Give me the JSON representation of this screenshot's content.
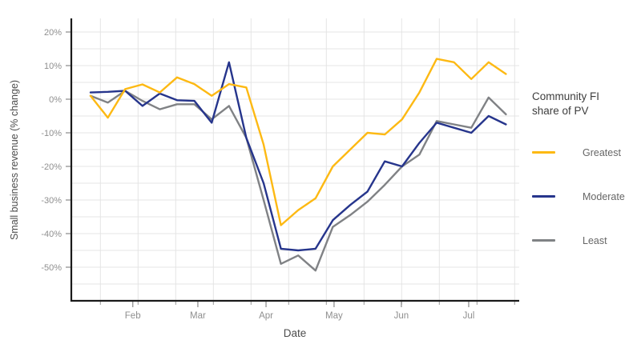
{
  "chart_data": {
    "type": "line",
    "title": "",
    "xlabel": "Date",
    "ylabel": "Small business revenue (% change)",
    "x_unit": "week_index",
    "week_index": [
      0,
      1,
      2,
      3,
      4,
      5,
      6,
      7,
      8,
      9,
      10,
      11,
      12,
      13,
      14,
      15,
      16,
      17,
      18,
      19,
      20,
      21,
      22,
      23,
      24
    ],
    "x_tick_labels": [
      "Feb",
      "Mar",
      "Apr",
      "May",
      "Jun",
      "Jul"
    ],
    "x_tick_positions_weeks": [
      2.44,
      6.2,
      10.14,
      14.07,
      17.96,
      21.85
    ],
    "x_range_weeks": [
      -1.1,
      24.8
    ],
    "y_tick_values": [
      20,
      10,
      0,
      -10,
      -20,
      -30,
      -40,
      -50
    ],
    "y_tick_labels": [
      "20%",
      "10%",
      "0%",
      "-10%",
      "-20%",
      "-30%",
      "-40%",
      "-50%"
    ],
    "ylim": [
      -60,
      24
    ],
    "grid": true,
    "gridline_color": "#e4e4e4",
    "axis_color": "#1a1a1a",
    "tick_label_color": "#8f8f8f",
    "axis_title_color": "#4d4d4d",
    "series": [
      {
        "name": "Greatest",
        "color": "#FDB913",
        "values": [
          1,
          -5.5,
          3,
          4.4,
          2,
          6.5,
          4.5,
          1,
          4.5,
          3.5,
          -13.5,
          -37.5,
          -33,
          -29.5,
          -20,
          -15,
          -10,
          -10.5,
          -6,
          2,
          12,
          11,
          6,
          11,
          7.5
        ]
      },
      {
        "name": "Moderate",
        "color": "#26358C",
        "values": [
          2,
          2.2,
          2.5,
          -2,
          1.7,
          -0.3,
          -0.5,
          -7,
          11,
          -11.5,
          -25,
          -44.5,
          -45,
          -44.5,
          -36,
          -31.5,
          -27.5,
          -18.5,
          -20,
          -13,
          -7,
          -8.5,
          -10,
          -5,
          -7.5
        ]
      },
      {
        "name": "Least",
        "color": "#808285",
        "values": [
          1,
          -1,
          2.5,
          -0.5,
          -3,
          -1.5,
          -1.5,
          -6,
          -2,
          -11.5,
          -30,
          -49,
          -46.5,
          -51,
          -38,
          -34.5,
          -30.5,
          -25.5,
          -20,
          -16.5,
          -6.5,
          -7.5,
          -8.5,
          0.5,
          -4.5
        ]
      }
    ],
    "legend_position": "right"
  },
  "legend": {
    "title": "Community FI share of PV",
    "items": [
      {
        "label": "Greatest",
        "color": "#FDB913"
      },
      {
        "label": "Moderate",
        "color": "#26358C"
      },
      {
        "label": "Least",
        "color": "#808285"
      }
    ]
  }
}
